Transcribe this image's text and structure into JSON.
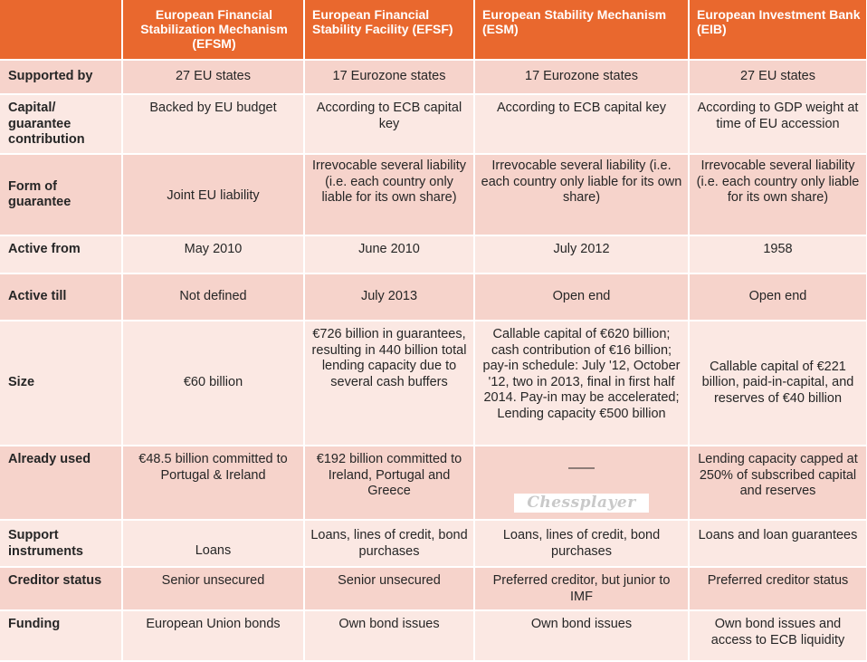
{
  "header": {
    "corner": "",
    "columns": [
      "European Financial Stabilization Mechanism (EFSM)",
      "European Financial Stability Facility (EFSF)",
      "European Stability Mechanism (ESM)",
      "European Investment Bank (EIB)"
    ]
  },
  "rows": [
    {
      "label": "Supported by",
      "values": [
        "27 EU states",
        "17 Eurozone states",
        "17 Eurozone states",
        "27 EU states"
      ]
    },
    {
      "label": "Capital/ guarantee contribution",
      "values": [
        "Backed by EU budget",
        "According to ECB capital key",
        "According to ECB capital key",
        "According to GDP weight at time of EU accession"
      ]
    },
    {
      "label": "Form of guarantee",
      "values": [
        "Joint EU liability",
        "Irrevocable several liability (i.e. each country only liable for its own share)",
        "Irrevocable several liability (i.e. each country only liable for its own share)",
        "Irrevocable several liability (i.e. each country only liable for its own share)"
      ]
    },
    {
      "label": "Active from",
      "values": [
        "May 2010",
        "June 2010",
        "July 2012",
        "1958"
      ]
    },
    {
      "label": "Active till",
      "values": [
        "Not defined",
        "July 2013",
        "Open end",
        "Open end"
      ]
    },
    {
      "label": "Size",
      "values": [
        "€60 billion",
        "€726 billion in guarantees, resulting in 440 billion total lending capacity due to several cash buffers",
        "Callable capital of €620 billion; cash contribution of €16 billion; pay-in schedule: July '12, October '12, two in 2013, final in first half 2014. Pay-in may be accelerated; Lending capacity €500 billion",
        "Callable capital of €221 billion, paid-in-capital, and reserves of €40 billion"
      ]
    },
    {
      "label": "Already used",
      "values": [
        "€48.5 billion committed to Portugal & Ireland",
        "€192 billion committed to Ireland, Portugal and Greece",
        "——",
        "Lending capacity capped at 250% of subscribed capital and reserves"
      ]
    },
    {
      "label": "Support instruments",
      "values": [
        "Loans",
        "Loans, lines of credit, bond purchases",
        "Loans, lines of credit, bond purchases",
        "Loans and loan guarantees"
      ]
    },
    {
      "label": "Creditor status",
      "values": [
        "Senior unsecured",
        "Senior unsecured",
        "Preferred creditor, but junior to IMF",
        "Preferred creditor status"
      ]
    },
    {
      "label": "Funding",
      "values": [
        "European Union bonds",
        "Own bond issues",
        "Own bond issues",
        "Own bond issues and access to ECB liquidity"
      ]
    }
  ],
  "watermark": "Chessplayer",
  "colors": {
    "header_bg": "#e9682e",
    "row_dark": "#f6d3cb",
    "row_light": "#fbe8e3"
  }
}
